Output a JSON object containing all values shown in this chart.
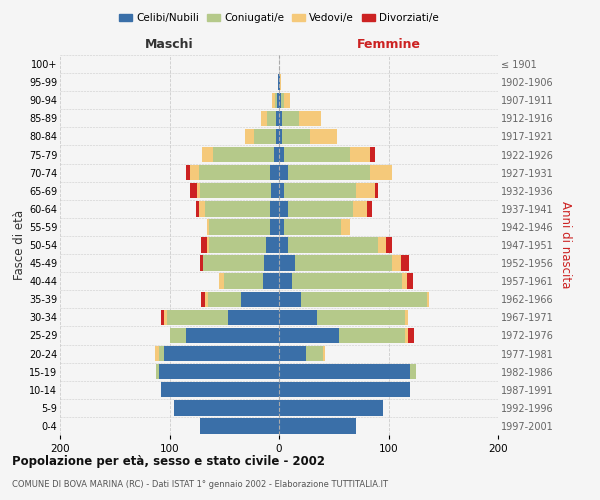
{
  "age_groups": [
    "0-4",
    "5-9",
    "10-14",
    "15-19",
    "20-24",
    "25-29",
    "30-34",
    "35-39",
    "40-44",
    "45-49",
    "50-54",
    "55-59",
    "60-64",
    "65-69",
    "70-74",
    "75-79",
    "80-84",
    "85-89",
    "90-94",
    "95-99",
    "100+"
  ],
  "birth_years": [
    "1997-2001",
    "1992-1996",
    "1987-1991",
    "1982-1986",
    "1977-1981",
    "1972-1976",
    "1967-1971",
    "1962-1966",
    "1957-1961",
    "1952-1956",
    "1947-1951",
    "1942-1946",
    "1937-1941",
    "1932-1936",
    "1927-1931",
    "1922-1926",
    "1917-1921",
    "1912-1916",
    "1907-1911",
    "1902-1906",
    "≤ 1901"
  ],
  "maschi": {
    "celibi": [
      72,
      96,
      108,
      110,
      105,
      85,
      47,
      35,
      15,
      14,
      12,
      8,
      8,
      7,
      8,
      5,
      3,
      3,
      2,
      1,
      0
    ],
    "coniugati": [
      0,
      0,
      0,
      2,
      5,
      15,
      55,
      30,
      35,
      55,
      52,
      56,
      60,
      65,
      65,
      55,
      20,
      8,
      2,
      0,
      0
    ],
    "vedovi": [
      0,
      0,
      0,
      0,
      3,
      0,
      3,
      3,
      5,
      0,
      2,
      2,
      5,
      3,
      8,
      10,
      8,
      5,
      2,
      0,
      0
    ],
    "divorziati": [
      0,
      0,
      0,
      0,
      0,
      0,
      3,
      3,
      0,
      3,
      5,
      0,
      3,
      6,
      4,
      0,
      0,
      0,
      0,
      0,
      0
    ]
  },
  "femmine": {
    "nubili": [
      70,
      95,
      120,
      120,
      25,
      55,
      35,
      20,
      12,
      15,
      8,
      5,
      8,
      5,
      8,
      5,
      3,
      3,
      2,
      1,
      0
    ],
    "coniugate": [
      0,
      0,
      0,
      5,
      15,
      60,
      80,
      115,
      100,
      88,
      82,
      52,
      60,
      65,
      75,
      60,
      25,
      15,
      3,
      0,
      0
    ],
    "vedove": [
      0,
      0,
      0,
      0,
      2,
      3,
      3,
      2,
      5,
      8,
      8,
      8,
      12,
      18,
      20,
      18,
      25,
      20,
      5,
      1,
      0
    ],
    "divorziate": [
      0,
      0,
      0,
      0,
      0,
      5,
      0,
      0,
      5,
      8,
      5,
      0,
      5,
      2,
      0,
      5,
      0,
      0,
      0,
      0,
      0
    ]
  },
  "colors": {
    "celibi": "#3a6fa8",
    "coniugati": "#b5c98a",
    "vedovi": "#f5c97a",
    "divorziati": "#cc2222"
  },
  "xlim": [
    -200,
    200
  ],
  "xticks": [
    -200,
    -100,
    0,
    100,
    200
  ],
  "xticklabels": [
    "200",
    "100",
    "0",
    "100",
    "200"
  ],
  "title": "Popolazione per età, sesso e stato civile - 2002",
  "subtitle": "COMUNE DI BOVA MARINA (RC) - Dati ISTAT 1° gennaio 2002 - Elaborazione TUTTITALIA.IT",
  "ylabel_left": "Fasce di età",
  "ylabel_right": "Anni di nascita",
  "maschi_label": "Maschi",
  "femmine_label": "Femmine",
  "background_color": "#f5f5f5",
  "grid_color": "#cccccc"
}
